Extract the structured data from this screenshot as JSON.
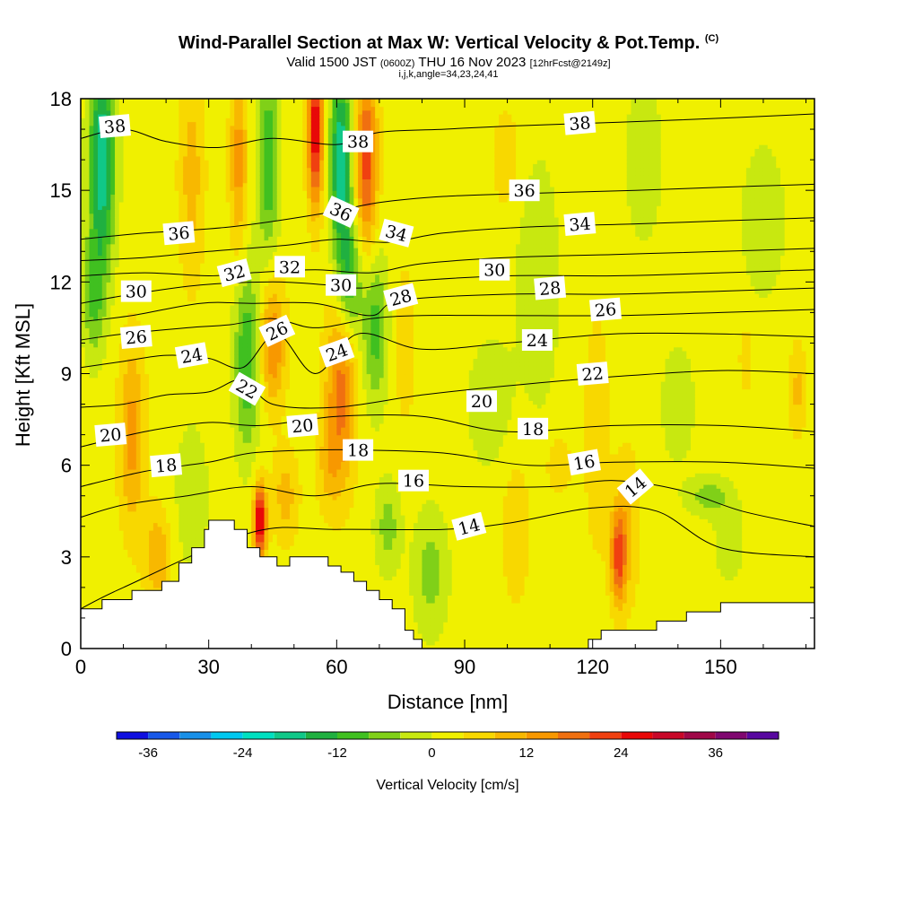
{
  "title": {
    "main": "Wind-Parallel Section at Max W: Vertical Velocity & Pot.Temp.",
    "copyright": "(C)",
    "valid_prefix": "Valid 1500 JST",
    "valid_utc": "(0600Z)",
    "valid_date": "THU 16 Nov 2023",
    "forecast": "[12hrFcst@2149z]",
    "indices": "i,j,k,angle=34,23,24,41"
  },
  "chart_data": {
    "type": "heatmap",
    "xlabel": "Distance [nm]",
    "ylabel": "Height [Kft MSL]",
    "xlim": [
      0,
      172
    ],
    "ylim": [
      0,
      18
    ],
    "xticks": [
      0,
      30,
      60,
      90,
      120,
      150
    ],
    "yticks": [
      0,
      3,
      6,
      9,
      12,
      15,
      18
    ],
    "colorbar": {
      "label": "Vertical Velocity [cm/s]",
      "min": -40,
      "max": 44,
      "step": 4,
      "ticks": [
        -36,
        -24,
        -12,
        0,
        12,
        24,
        36
      ],
      "colors": [
        "#1010e0",
        "#1858e8",
        "#1890e8",
        "#00c8f0",
        "#00e0c0",
        "#10c888",
        "#20b040",
        "#40c020",
        "#80d018",
        "#c8e810",
        "#f0f000",
        "#f8d800",
        "#f8b800",
        "#f89800",
        "#f07010",
        "#f04010",
        "#e80808",
        "#c80828",
        "#a00848",
        "#800870",
        "#5808a0"
      ]
    },
    "terrain": [
      [
        0,
        1.3
      ],
      [
        5,
        1.3
      ],
      [
        5,
        1.6
      ],
      [
        12,
        1.6
      ],
      [
        12,
        1.9
      ],
      [
        19,
        1.9
      ],
      [
        19,
        2.2
      ],
      [
        23,
        2.2
      ],
      [
        23,
        2.8
      ],
      [
        26,
        2.8
      ],
      [
        26,
        3.3
      ],
      [
        29,
        3.3
      ],
      [
        29,
        3.9
      ],
      [
        30,
        3.9
      ],
      [
        30,
        4.2
      ],
      [
        36,
        4.2
      ],
      [
        36,
        3.9
      ],
      [
        39,
        3.9
      ],
      [
        39,
        3.3
      ],
      [
        42,
        3.3
      ],
      [
        42,
        3.0
      ],
      [
        46,
        3.0
      ],
      [
        46,
        2.7
      ],
      [
        49,
        2.7
      ],
      [
        49,
        3.0
      ],
      [
        58,
        3.0
      ],
      [
        58,
        2.7
      ],
      [
        61,
        2.7
      ],
      [
        61,
        2.5
      ],
      [
        64,
        2.5
      ],
      [
        64,
        2.2
      ],
      [
        67,
        2.2
      ],
      [
        67,
        1.9
      ],
      [
        70,
        1.9
      ],
      [
        70,
        1.6
      ],
      [
        73,
        1.6
      ],
      [
        73,
        1.3
      ],
      [
        76,
        1.3
      ],
      [
        76,
        0.6
      ],
      [
        78,
        0.6
      ],
      [
        78,
        0.3
      ],
      [
        80,
        0.3
      ],
      [
        80,
        0
      ],
      [
        119,
        0
      ],
      [
        119,
        0.3
      ],
      [
        122,
        0.3
      ],
      [
        122,
        0.6
      ],
      [
        135,
        0.6
      ],
      [
        135,
        0.9
      ],
      [
        142,
        0.9
      ],
      [
        142,
        1.2
      ],
      [
        150,
        1.2
      ],
      [
        150,
        1.5
      ],
      [
        172,
        1.5
      ]
    ],
    "vv_field": [
      {
        "x": 5,
        "y": 16.0,
        "sx": 3,
        "sy": 3.5,
        "w": -22
      },
      {
        "x": 3,
        "y": 11.5,
        "sx": 2.5,
        "sy": 2.0,
        "w": -10
      },
      {
        "x": 12,
        "y": 7.0,
        "sx": 3,
        "sy": 3.0,
        "w": 12
      },
      {
        "x": 18,
        "y": 3.0,
        "sx": 3,
        "sy": 1.5,
        "w": 10
      },
      {
        "x": 26,
        "y": 5.0,
        "sx": 4,
        "sy": 2.5,
        "w": -5
      },
      {
        "x": 26,
        "y": 15.5,
        "sx": 3,
        "sy": 3.5,
        "w": 8
      },
      {
        "x": 37,
        "y": 16.0,
        "sx": 2,
        "sy": 3.0,
        "w": 12
      },
      {
        "x": 44,
        "y": 16.0,
        "sx": 2.5,
        "sy": 3.0,
        "w": -14
      },
      {
        "x": 39,
        "y": 9.5,
        "sx": 3,
        "sy": 3.0,
        "w": -14
      },
      {
        "x": 45,
        "y": 10.0,
        "sx": 3,
        "sy": 2.0,
        "w": 14
      },
      {
        "x": 42,
        "y": 4.2,
        "sx": 1.5,
        "sy": 1.2,
        "w": 28
      },
      {
        "x": 48,
        "y": 5.0,
        "sx": 3,
        "sy": 1.5,
        "w": 8
      },
      {
        "x": 55,
        "y": 17.0,
        "sx": 1.8,
        "sy": 2.5,
        "w": 26
      },
      {
        "x": 61,
        "y": 16.0,
        "sx": 2.5,
        "sy": 3.0,
        "w": -22
      },
      {
        "x": 67,
        "y": 16.0,
        "sx": 2.5,
        "sy": 3.0,
        "w": 20
      },
      {
        "x": 63,
        "y": 12.0,
        "sx": 3,
        "sy": 2.0,
        "w": -14
      },
      {
        "x": 61,
        "y": 8.5,
        "sx": 3.5,
        "sy": 3.0,
        "w": 16
      },
      {
        "x": 58,
        "y": 6.0,
        "sx": 3,
        "sy": 1.5,
        "w": 6
      },
      {
        "x": 69,
        "y": 10.5,
        "sx": 3,
        "sy": 2.5,
        "w": -12
      },
      {
        "x": 72,
        "y": 4.0,
        "sx": 3,
        "sy": 1.5,
        "w": -8
      },
      {
        "x": 76,
        "y": 10.0,
        "sx": 3,
        "sy": 3.0,
        "w": 4
      },
      {
        "x": 82,
        "y": 2.5,
        "sx": 4,
        "sy": 2.0,
        "w": -8
      },
      {
        "x": 96,
        "y": 8.0,
        "sx": 5,
        "sy": 2.0,
        "w": -6
      },
      {
        "x": 102,
        "y": 4.0,
        "sx": 4,
        "sy": 3.0,
        "w": 4
      },
      {
        "x": 107,
        "y": 12.0,
        "sx": 5,
        "sy": 4.0,
        "w": -6
      },
      {
        "x": 100,
        "y": 16.0,
        "sx": 4,
        "sy": 2.0,
        "w": 4
      },
      {
        "x": 112,
        "y": 6.0,
        "sx": 3,
        "sy": 1.0,
        "w": 5
      },
      {
        "x": 121,
        "y": 7.0,
        "sx": 3,
        "sy": 4.0,
        "w": 5
      },
      {
        "x": 126,
        "y": 3.0,
        "sx": 1.8,
        "sy": 1.5,
        "w": 18
      },
      {
        "x": 128,
        "y": 4.0,
        "sx": 3,
        "sy": 2.5,
        "w": 7
      },
      {
        "x": 132,
        "y": 16.0,
        "sx": 4,
        "sy": 2.5,
        "w": -6
      },
      {
        "x": 140,
        "y": 8.0,
        "sx": 4,
        "sy": 2.0,
        "w": -5
      },
      {
        "x": 147,
        "y": 5.0,
        "sx": 5,
        "sy": 0.6,
        "w": -8
      },
      {
        "x": 152,
        "y": 3.5,
        "sx": 4,
        "sy": 1.5,
        "w": -4
      },
      {
        "x": 156,
        "y": 9.5,
        "sx": 1.5,
        "sy": 1.0,
        "w": 6
      },
      {
        "x": 168,
        "y": 8.5,
        "sx": 2,
        "sy": 1.5,
        "w": 7
      },
      {
        "x": 160,
        "y": 14.0,
        "sx": 6,
        "sy": 3.0,
        "w": -4
      }
    ],
    "theta_contours": [
      {
        "level": 14,
        "pts": [
          [
            0,
            1.3
          ],
          [
            10,
            2.0
          ],
          [
            40,
            3.8
          ],
          [
            60,
            3.9
          ],
          [
            85,
            3.9
          ],
          [
            100,
            4.1
          ],
          [
            120,
            4.6
          ],
          [
            135,
            4.5
          ],
          [
            150,
            3.3
          ],
          [
            172,
            3.0
          ]
        ]
      },
      {
        "level": 16,
        "pts": [
          [
            0,
            4.3
          ],
          [
            10,
            4.7
          ],
          [
            25,
            5.0
          ],
          [
            40,
            5.3
          ],
          [
            55,
            5.0
          ],
          [
            70,
            5.4
          ],
          [
            90,
            5.3
          ],
          [
            110,
            5.3
          ],
          [
            125,
            5.5
          ],
          [
            140,
            5.2
          ],
          [
            155,
            4.5
          ],
          [
            172,
            4.0
          ]
        ]
      },
      {
        "level": 18,
        "pts": [
          [
            0,
            5.3
          ],
          [
            15,
            5.8
          ],
          [
            30,
            6.1
          ],
          [
            40,
            6.4
          ],
          [
            55,
            6.5
          ],
          [
            65,
            6.5
          ],
          [
            85,
            6.4
          ],
          [
            105,
            6.0
          ],
          [
            125,
            6.1
          ],
          [
            150,
            6.1
          ],
          [
            172,
            5.9
          ]
        ]
      },
      {
        "level": 20,
        "pts": [
          [
            0,
            6.6
          ],
          [
            15,
            7.1
          ],
          [
            30,
            7.4
          ],
          [
            42,
            7.3
          ],
          [
            60,
            7.6
          ],
          [
            80,
            7.6
          ],
          [
            100,
            7.1
          ],
          [
            125,
            7.3
          ],
          [
            150,
            7.3
          ],
          [
            172,
            7.1
          ]
        ]
      },
      {
        "level": 22,
        "pts": [
          [
            0,
            7.9
          ],
          [
            10,
            8.0
          ],
          [
            20,
            8.3
          ],
          [
            30,
            8.4
          ],
          [
            38,
            8.8
          ],
          [
            45,
            8.0
          ],
          [
            60,
            7.9
          ],
          [
            80,
            8.3
          ],
          [
            100,
            8.6
          ],
          [
            125,
            8.9
          ],
          [
            150,
            9.1
          ],
          [
            172,
            9.0
          ]
        ]
      },
      {
        "level": 24,
        "pts": [
          [
            0,
            9.2
          ],
          [
            10,
            9.4
          ],
          [
            20,
            9.6
          ],
          [
            30,
            9.5
          ],
          [
            38,
            9.2
          ],
          [
            46,
            10.3
          ],
          [
            55,
            9.0
          ],
          [
            65,
            10.3
          ],
          [
            80,
            9.8
          ],
          [
            100,
            10.0
          ],
          [
            125,
            10.3
          ],
          [
            150,
            10.3
          ],
          [
            172,
            10.2
          ]
        ]
      },
      {
        "level": 26,
        "pts": [
          [
            0,
            10.1
          ],
          [
            10,
            10.3
          ],
          [
            25,
            10.5
          ],
          [
            35,
            10.6
          ],
          [
            45,
            10.8
          ],
          [
            55,
            10.5
          ],
          [
            68,
            10.8
          ],
          [
            80,
            10.9
          ],
          [
            100,
            10.9
          ],
          [
            125,
            10.9
          ],
          [
            150,
            11.0
          ],
          [
            172,
            11.1
          ]
        ]
      },
      {
        "level": 28,
        "pts": [
          [
            0,
            10.7
          ],
          [
            12,
            10.9
          ],
          [
            28,
            11.3
          ],
          [
            40,
            11.3
          ],
          [
            55,
            11.3
          ],
          [
            68,
            10.9
          ],
          [
            75,
            11.4
          ],
          [
            100,
            11.6
          ],
          [
            125,
            11.6
          ],
          [
            150,
            11.7
          ],
          [
            172,
            11.8
          ]
        ]
      },
      {
        "level": 30,
        "pts": [
          [
            0,
            11.3
          ],
          [
            12,
            11.6
          ],
          [
            28,
            11.9
          ],
          [
            45,
            12.0
          ],
          [
            58,
            11.9
          ],
          [
            66,
            11.8
          ],
          [
            75,
            12.0
          ],
          [
            100,
            12.2
          ],
          [
            125,
            12.2
          ],
          [
            150,
            12.3
          ],
          [
            172,
            12.4
          ]
        ]
      },
      {
        "level": 32,
        "pts": [
          [
            0,
            12.2
          ],
          [
            15,
            12.3
          ],
          [
            30,
            12.2
          ],
          [
            40,
            12.3
          ],
          [
            55,
            12.4
          ],
          [
            68,
            12.3
          ],
          [
            80,
            12.6
          ],
          [
            100,
            12.8
          ],
          [
            125,
            12.9
          ],
          [
            150,
            13.0
          ],
          [
            172,
            13.1
          ]
        ]
      },
      {
        "level": 34,
        "pts": [
          [
            0,
            12.7
          ],
          [
            15,
            12.8
          ],
          [
            30,
            13.0
          ],
          [
            48,
            13.2
          ],
          [
            60,
            13.4
          ],
          [
            72,
            13.3
          ],
          [
            85,
            13.6
          ],
          [
            105,
            13.8
          ],
          [
            130,
            13.9
          ],
          [
            150,
            14.0
          ],
          [
            172,
            14.1
          ]
        ]
      },
      {
        "level": 36,
        "pts": [
          [
            0,
            13.4
          ],
          [
            15,
            13.6
          ],
          [
            35,
            13.8
          ],
          [
            55,
            14.2
          ],
          [
            70,
            14.6
          ],
          [
            85,
            14.8
          ],
          [
            105,
            14.9
          ],
          [
            130,
            15.0
          ],
          [
            150,
            15.1
          ],
          [
            172,
            15.2
          ]
        ]
      },
      {
        "level": 38,
        "pts": [
          [
            0,
            16.7
          ],
          [
            10,
            17.0
          ],
          [
            20,
            16.6
          ],
          [
            32,
            16.4
          ],
          [
            45,
            16.7
          ],
          [
            60,
            16.5
          ],
          [
            70,
            16.9
          ],
          [
            85,
            17.0
          ],
          [
            100,
            17.1
          ],
          [
            120,
            17.2
          ],
          [
            140,
            17.3
          ],
          [
            172,
            17.5
          ]
        ]
      }
    ],
    "contour_labels": [
      {
        "text": "38",
        "x": 8,
        "y": 17.1,
        "angle": -5
      },
      {
        "text": "38",
        "x": 65,
        "y": 16.6,
        "angle": 0
      },
      {
        "text": "38",
        "x": 117,
        "y": 17.2,
        "angle": -5
      },
      {
        "text": "36",
        "x": 23,
        "y": 13.6,
        "angle": -5
      },
      {
        "text": "36",
        "x": 61,
        "y": 14.3,
        "angle": 25
      },
      {
        "text": "36",
        "x": 104,
        "y": 15.0,
        "angle": 0
      },
      {
        "text": "34",
        "x": 74,
        "y": 13.6,
        "angle": 15
      },
      {
        "text": "34",
        "x": 117,
        "y": 13.9,
        "angle": -5
      },
      {
        "text": "32",
        "x": 36,
        "y": 12.3,
        "angle": -15
      },
      {
        "text": "32",
        "x": 49,
        "y": 12.5,
        "angle": 0
      },
      {
        "text": "30",
        "x": 13,
        "y": 11.7,
        "angle": 0
      },
      {
        "text": "30",
        "x": 61,
        "y": 11.9,
        "angle": 0
      },
      {
        "text": "30",
        "x": 97,
        "y": 12.4,
        "angle": 0
      },
      {
        "text": "28",
        "x": 75,
        "y": 11.5,
        "angle": -15
      },
      {
        "text": "28",
        "x": 110,
        "y": 11.8,
        "angle": -5
      },
      {
        "text": "26",
        "x": 13,
        "y": 10.2,
        "angle": -5
      },
      {
        "text": "26",
        "x": 46,
        "y": 10.4,
        "angle": -25
      },
      {
        "text": "26",
        "x": 123,
        "y": 11.1,
        "angle": -5
      },
      {
        "text": "24",
        "x": 26,
        "y": 9.6,
        "angle": -10
      },
      {
        "text": "24",
        "x": 60,
        "y": 9.7,
        "angle": -20
      },
      {
        "text": "24",
        "x": 107,
        "y": 10.1,
        "angle": 0
      },
      {
        "text": "22",
        "x": 39,
        "y": 8.5,
        "angle": 30
      },
      {
        "text": "22",
        "x": 120,
        "y": 9.0,
        "angle": -5
      },
      {
        "text": "20",
        "x": 7,
        "y": 7.0,
        "angle": -5
      },
      {
        "text": "20",
        "x": 52,
        "y": 7.3,
        "angle": -5
      },
      {
        "text": "20",
        "x": 94,
        "y": 8.1,
        "angle": 0
      },
      {
        "text": "18",
        "x": 20,
        "y": 6.0,
        "angle": -5
      },
      {
        "text": "18",
        "x": 65,
        "y": 6.5,
        "angle": 0
      },
      {
        "text": "18",
        "x": 106,
        "y": 7.2,
        "angle": 0
      },
      {
        "text": "16",
        "x": 78,
        "y": 5.5,
        "angle": 0
      },
      {
        "text": "16",
        "x": 118,
        "y": 6.1,
        "angle": -10
      },
      {
        "text": "14",
        "x": 91,
        "y": 4.0,
        "angle": -15
      },
      {
        "text": "14",
        "x": 130,
        "y": 5.3,
        "angle": -40
      }
    ]
  }
}
